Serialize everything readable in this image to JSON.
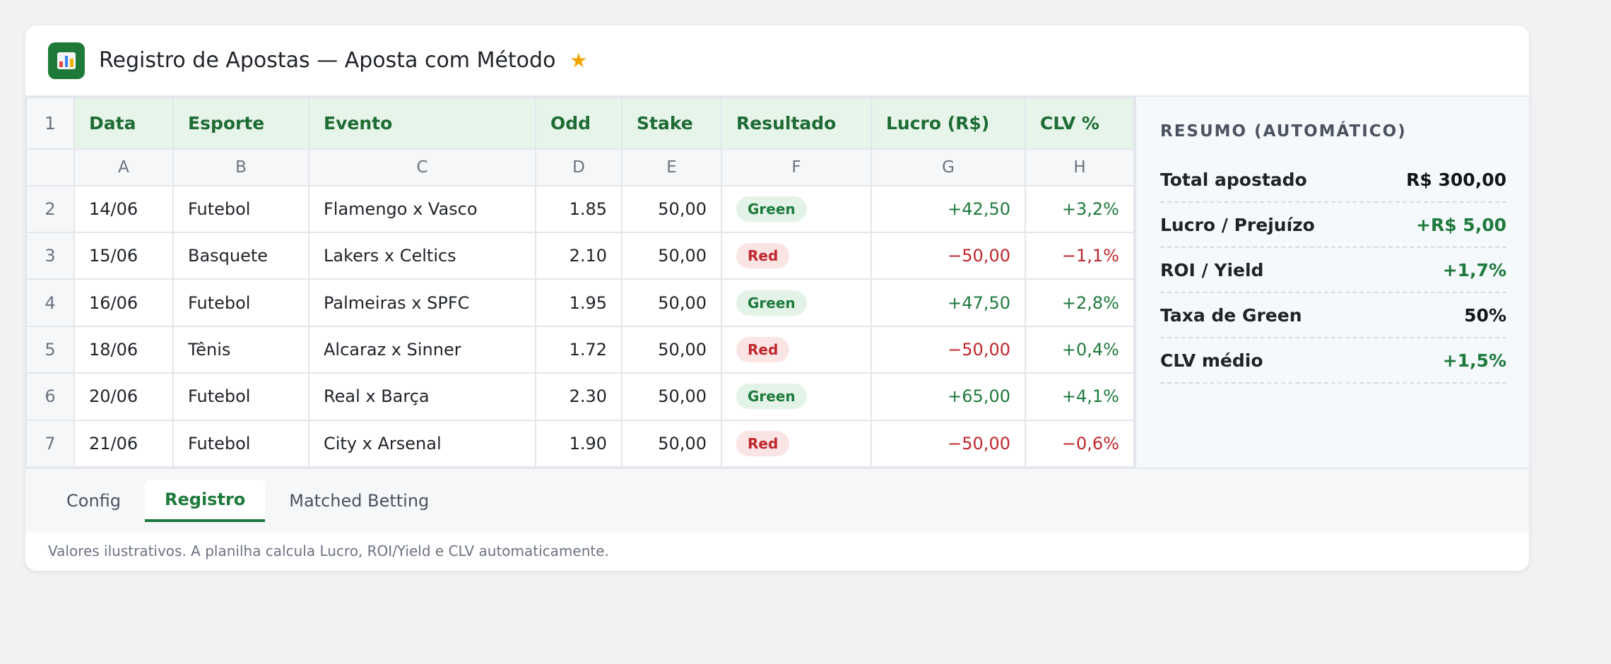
{
  "header": {
    "title": "Registro de Apostas — Aposta com Método",
    "star": "★",
    "icon": "spreadsheet-chart-icon"
  },
  "sheet": {
    "header_row_num": "1",
    "headers": [
      "Data",
      "Esporte",
      "Evento",
      "Odd",
      "Stake",
      "Resultado",
      "Lucro (R$)",
      "CLV %"
    ],
    "column_letters": [
      "A",
      "B",
      "C",
      "D",
      "E",
      "F",
      "G",
      "H"
    ],
    "rows": [
      {
        "num": "2",
        "data": "14/06",
        "esporte": "Futebol",
        "evento": "Flamengo x Vasco",
        "odd": "1.85",
        "stake": "50,00",
        "resultado": "Green",
        "lucro": "+42,50",
        "clv": "+3,2%"
      },
      {
        "num": "3",
        "data": "15/06",
        "esporte": "Basquete",
        "evento": "Lakers x Celtics",
        "odd": "2.10",
        "stake": "50,00",
        "resultado": "Red",
        "lucro": "−50,00",
        "clv": "−1,1%"
      },
      {
        "num": "4",
        "data": "16/06",
        "esporte": "Futebol",
        "evento": "Palmeiras x SPFC",
        "odd": "1.95",
        "stake": "50,00",
        "resultado": "Green",
        "lucro": "+47,50",
        "clv": "+2,8%"
      },
      {
        "num": "5",
        "data": "18/06",
        "esporte": "Tênis",
        "evento": "Alcaraz x Sinner",
        "odd": "1.72",
        "stake": "50,00",
        "resultado": "Red",
        "lucro": "−50,00",
        "clv": "+0,4%"
      },
      {
        "num": "6",
        "data": "20/06",
        "esporte": "Futebol",
        "evento": "Real x Barça",
        "odd": "2.30",
        "stake": "50,00",
        "resultado": "Green",
        "lucro": "+65,00",
        "clv": "+4,1%"
      },
      {
        "num": "7",
        "data": "21/06",
        "esporte": "Futebol",
        "evento": "City x Arsenal",
        "odd": "1.90",
        "stake": "50,00",
        "resultado": "Red",
        "lucro": "−50,00",
        "clv": "−0,6%"
      }
    ]
  },
  "summary": {
    "title": "RESUMO (AUTOMÁTICO)",
    "items": [
      {
        "label": "Total apostado",
        "value": "R$ 300,00"
      },
      {
        "label": "Lucro / Prejuízo",
        "value": "+R$ 5,00"
      },
      {
        "label": "ROI / Yield",
        "value": "+1,7%"
      },
      {
        "label": "Taxa de Green",
        "value": "50%"
      },
      {
        "label": "CLV médio",
        "value": "+1,5%"
      }
    ]
  },
  "tabs": [
    {
      "label": "Config",
      "active": false
    },
    {
      "label": "Registro",
      "active": true
    },
    {
      "label": "Matched Betting",
      "active": false
    }
  ],
  "footer": {
    "note": "Valores ilustrativos. A planilha calcula Lucro, ROI/Yield e CLV automaticamente."
  },
  "colors": {
    "accent_green": "#1e7a3c",
    "negative_red": "#c0262d",
    "star": "#f0a400"
  }
}
